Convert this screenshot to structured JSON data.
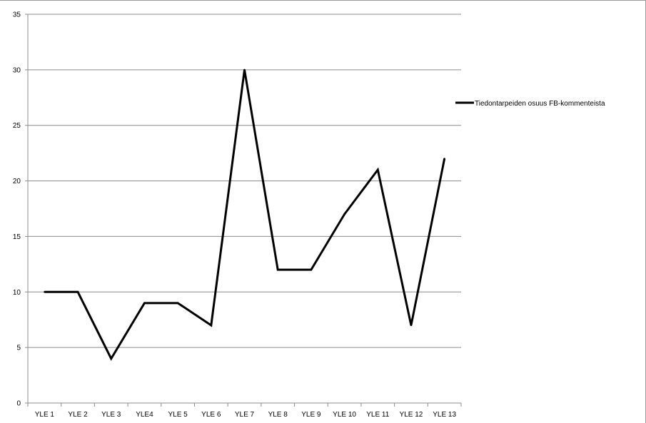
{
  "chart_data": {
    "type": "line",
    "title": "",
    "xlabel": "",
    "ylabel": "",
    "categories": [
      "YLE 1",
      "YLE 2",
      "YLE 3",
      "YLE4",
      "YLE 5",
      "YLE 6",
      "YLE 7",
      "YLE 8",
      "YLE 9",
      "YLE 10",
      "YLE 11",
      "YLE 12",
      "YLE 13"
    ],
    "series": [
      {
        "name": "Tiedontarpeiden osuus FB-kommenteista",
        "values": [
          10,
          10,
          4,
          9,
          9,
          7,
          30,
          12,
          12,
          17,
          21,
          7,
          22
        ],
        "color": "#000000"
      }
    ],
    "ylim": [
      0,
      35
    ],
    "yticks": [
      0,
      5,
      10,
      15,
      20,
      25,
      30,
      35
    ],
    "grid": true,
    "legend_position": "right"
  }
}
